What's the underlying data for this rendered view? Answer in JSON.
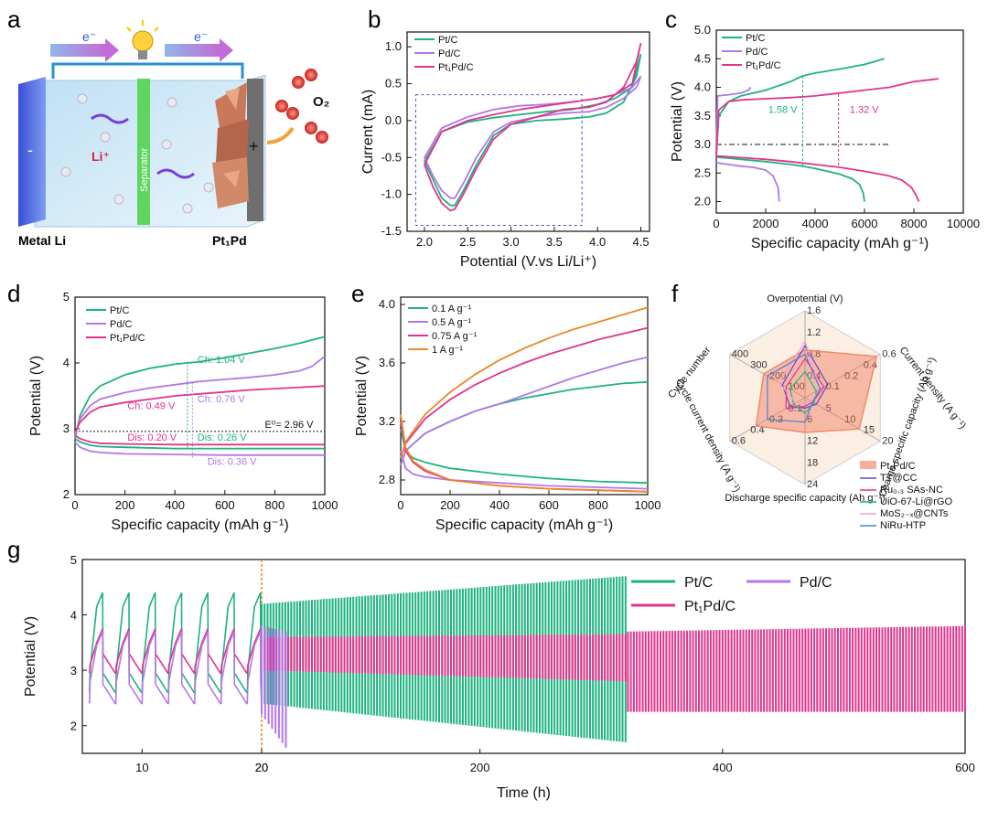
{
  "panel_letters": [
    "a",
    "b",
    "c",
    "d",
    "e",
    "f",
    "g"
  ],
  "schematic": {
    "electron_label": "e⁻",
    "electron_label_2": "e⁻",
    "li_ion": "Li⁺",
    "separator": "Separator",
    "o2": "O₂",
    "minus": "-",
    "plus": "+",
    "anode_label": "Metal Li",
    "cathode_label": "Pt₁Pd"
  },
  "colors": {
    "PtC": "#1db37f",
    "PdC": "#b377e6",
    "Pt1PdC": "#e0358e",
    "A1": "#e8892a",
    "A075": "#e0358e",
    "A05": "#b377e6",
    "A01": "#1db37f"
  },
  "chart_data": [
    {
      "panel": "b",
      "type": "line",
      "xlabel": "Potential (V.vs Li/Li⁺)",
      "ylabel": "Current (mA)",
      "xlim": [
        1.8,
        4.6
      ],
      "ylim": [
        -1.5,
        1.2
      ],
      "xticks": [
        "2.0",
        "2.5",
        "3.0",
        "3.5",
        "4.0",
        "4.5"
      ],
      "yticks": [
        "1.0",
        "0.5",
        "0.0",
        "-0.5",
        "-1.0",
        "-1.5"
      ],
      "legend": [
        "Pt/C",
        "Pd/C",
        "Pt₁Pd/C"
      ],
      "series": [
        {
          "name": "Pt/C",
          "x": [
            2.0,
            2.1,
            2.2,
            2.3,
            2.35,
            2.45,
            2.6,
            2.8,
            3.0,
            3.3,
            3.6,
            3.9,
            4.1,
            4.3,
            4.45,
            4.5,
            4.4,
            4.2,
            4.0,
            3.7,
            3.4,
            3.1,
            2.8,
            2.5,
            2.2,
            2.0
          ],
          "y": [
            -0.55,
            -0.8,
            -1.05,
            -1.15,
            -1.15,
            -0.95,
            -0.6,
            -0.2,
            -0.05,
            0.0,
            0.02,
            0.05,
            0.1,
            0.25,
            0.6,
            0.9,
            0.45,
            0.3,
            0.22,
            0.15,
            0.12,
            0.08,
            0.04,
            -0.02,
            -0.15,
            -0.55
          ]
        },
        {
          "name": "Pd/C",
          "x": [
            2.0,
            2.1,
            2.2,
            2.3,
            2.35,
            2.45,
            2.6,
            2.8,
            3.0,
            3.3,
            3.6,
            3.9,
            4.1,
            4.3,
            4.45,
            4.5,
            4.4,
            4.2,
            4.0,
            3.7,
            3.4,
            3.1,
            2.8,
            2.5,
            2.2,
            2.0
          ],
          "y": [
            -0.5,
            -0.75,
            -0.95,
            -1.05,
            -1.05,
            -0.85,
            -0.5,
            -0.15,
            -0.02,
            0.05,
            0.1,
            0.12,
            0.18,
            0.3,
            0.45,
            0.6,
            0.45,
            0.35,
            0.3,
            0.25,
            0.22,
            0.2,
            0.15,
            0.05,
            -0.1,
            -0.5
          ]
        },
        {
          "name": "Pt₁Pd/C",
          "x": [
            2.0,
            2.1,
            2.2,
            2.3,
            2.35,
            2.45,
            2.6,
            2.8,
            3.0,
            3.3,
            3.6,
            3.9,
            4.1,
            4.3,
            4.45,
            4.5,
            4.4,
            4.2,
            4.0,
            3.7,
            3.4,
            3.1,
            2.8,
            2.5,
            2.2,
            2.0
          ],
          "y": [
            -0.6,
            -0.9,
            -1.12,
            -1.22,
            -1.2,
            -1.0,
            -0.65,
            -0.25,
            -0.05,
            0.05,
            0.15,
            0.18,
            0.25,
            0.45,
            0.8,
            1.05,
            0.5,
            0.35,
            0.3,
            0.25,
            0.2,
            0.15,
            0.08,
            0.0,
            -0.15,
            -0.6
          ]
        }
      ]
    },
    {
      "panel": "c",
      "type": "line",
      "xlabel": "Specific capacity (mAh g⁻¹)",
      "ylabel": "Potential (V)",
      "xlim": [
        0,
        10000
      ],
      "ylim": [
        1.8,
        5.0
      ],
      "xticks": [
        "0",
        "2000",
        "4000",
        "6000",
        "8000",
        "10000"
      ],
      "yticks": [
        "2.0",
        "2.5",
        "3.0",
        "3.5",
        "4.0",
        "4.5",
        "5.0"
      ],
      "legend": [
        "Pt/C",
        "Pd/C",
        "Pt₁Pd/C"
      ],
      "annotations": [
        "1.58 V",
        "1.32 V"
      ],
      "reference_line": 3.0,
      "series": [
        {
          "name": "Pt/C",
          "charge_x": [
            0,
            100,
            500,
            1000,
            2000,
            3000,
            3500,
            4000,
            5000,
            6000,
            6800
          ],
          "charge_y": [
            2.8,
            3.5,
            3.75,
            3.85,
            3.95,
            4.1,
            4.2,
            4.25,
            4.32,
            4.4,
            4.5
          ],
          "discharge_x": [
            0,
            500,
            1000,
            2000,
            3000,
            3500,
            4000,
            5000,
            5500,
            5800,
            5950,
            6000
          ],
          "discharge_y": [
            2.78,
            2.76,
            2.74,
            2.7,
            2.65,
            2.62,
            2.58,
            2.48,
            2.4,
            2.3,
            2.15,
            2.0
          ]
        },
        {
          "name": "Pd/C",
          "charge_x": [
            0,
            50,
            500,
            1000,
            1300,
            1400
          ],
          "charge_y": [
            2.8,
            3.85,
            3.87,
            3.9,
            3.95,
            4.0
          ],
          "discharge_x": [
            0,
            500,
            1000,
            1500,
            2000,
            2300,
            2500,
            2550
          ],
          "discharge_y": [
            2.68,
            2.65,
            2.62,
            2.6,
            2.55,
            2.45,
            2.25,
            2.0
          ]
        },
        {
          "name": "Pt₁Pd/C",
          "charge_x": [
            0,
            100,
            500,
            1000,
            2000,
            3000,
            4000,
            5000,
            6000,
            7000,
            8000,
            9000
          ],
          "charge_y": [
            2.8,
            3.6,
            3.75,
            3.78,
            3.8,
            3.82,
            3.85,
            3.9,
            3.95,
            4.0,
            4.1,
            4.15
          ],
          "discharge_x": [
            0,
            1000,
            2000,
            3000,
            4000,
            5000,
            6000,
            7000,
            7500,
            7900,
            8100,
            8200
          ],
          "discharge_y": [
            2.8,
            2.77,
            2.74,
            2.7,
            2.65,
            2.6,
            2.53,
            2.45,
            2.38,
            2.25,
            2.1,
            2.0
          ]
        }
      ]
    },
    {
      "panel": "d",
      "type": "line",
      "xlabel": "Specific capacity (mAh g⁻¹)",
      "ylabel": "Potential (V)",
      "xlim": [
        0,
        1000
      ],
      "ylim": [
        2,
        5
      ],
      "xticks": [
        "0",
        "200",
        "400",
        "600",
        "800",
        "1000"
      ],
      "yticks": [
        "2",
        "3",
        "4",
        "5"
      ],
      "legend": [
        "Pt/C",
        "Pd/C",
        "Pt₁Pd/C"
      ],
      "reference_line": 2.96,
      "reference_label": "E⁰= 2.96 V",
      "annotations": [
        {
          "text": "Ch: 1.04 V",
          "color": "#1db37f"
        },
        {
          "text": "Ch: 0.76 V",
          "color": "#b377e6"
        },
        {
          "text": "Ch: 0.49 V",
          "color": "#e0358e"
        },
        {
          "text": "Dis: 0.20 V",
          "color": "#e0358e"
        },
        {
          "text": "Dis: 0.26 V",
          "color": "#1db37f"
        },
        {
          "text": "Dis: 0.36 V",
          "color": "#b377e6"
        }
      ],
      "series": [
        {
          "name": "Pt/C",
          "charge_x": [
            0,
            20,
            60,
            100,
            200,
            300,
            400,
            500,
            600,
            700,
            800,
            900,
            1000
          ],
          "charge_y": [
            2.85,
            3.2,
            3.5,
            3.65,
            3.82,
            3.92,
            3.98,
            4.02,
            4.08,
            4.15,
            4.22,
            4.3,
            4.4
          ],
          "discharge_x": [
            0,
            20,
            60,
            100,
            200,
            400,
            600,
            800,
            1000
          ],
          "discharge_y": [
            2.85,
            2.8,
            2.75,
            2.73,
            2.72,
            2.7,
            2.7,
            2.7,
            2.7
          ]
        },
        {
          "name": "Pd/C",
          "charge_x": [
            0,
            20,
            60,
            100,
            200,
            300,
            400,
            500,
            600,
            700,
            800,
            900,
            950,
            1000
          ],
          "charge_y": [
            2.9,
            3.15,
            3.35,
            3.45,
            3.55,
            3.62,
            3.67,
            3.72,
            3.75,
            3.78,
            3.82,
            3.88,
            3.95,
            4.1
          ],
          "discharge_x": [
            0,
            20,
            60,
            100,
            200,
            400,
            600,
            800,
            1000
          ],
          "discharge_y": [
            2.8,
            2.72,
            2.66,
            2.64,
            2.62,
            2.61,
            2.6,
            2.6,
            2.6
          ]
        },
        {
          "name": "Pt₁Pd/C",
          "charge_x": [
            0,
            20,
            60,
            100,
            200,
            300,
            400,
            500,
            600,
            700,
            800,
            900,
            1000
          ],
          "charge_y": [
            2.95,
            3.1,
            3.25,
            3.33,
            3.4,
            3.45,
            3.5,
            3.53,
            3.56,
            3.59,
            3.61,
            3.63,
            3.65
          ],
          "discharge_x": [
            0,
            20,
            60,
            100,
            200,
            400,
            600,
            800,
            1000
          ],
          "discharge_y": [
            2.9,
            2.85,
            2.8,
            2.78,
            2.77,
            2.76,
            2.76,
            2.76,
            2.76
          ]
        }
      ]
    },
    {
      "panel": "e",
      "type": "line",
      "xlabel": "Specific capacity (mAh g⁻¹)",
      "ylabel": "Potential (V)",
      "xlim": [
        0,
        1000
      ],
      "ylim": [
        2.7,
        4.05
      ],
      "xticks": [
        "0",
        "200",
        "400",
        "600",
        "800",
        "1000"
      ],
      "yticks": [
        "2.8",
        "3.2",
        "3.6",
        "4.0"
      ],
      "legend": [
        "0.1 A g⁻¹",
        "0.5 A g⁻¹",
        "0.75 A g⁻¹",
        "1 A g⁻¹"
      ],
      "series": [
        {
          "name": "0.1 A g⁻¹",
          "charge_x": [
            0,
            20,
            100,
            200,
            300,
            400,
            500,
            600,
            700,
            800,
            900,
            1000
          ],
          "charge_y": [
            2.9,
            3.0,
            3.12,
            3.2,
            3.27,
            3.32,
            3.36,
            3.39,
            3.42,
            3.44,
            3.46,
            3.47
          ],
          "discharge_x": [
            0,
            20,
            50,
            100,
            200,
            400,
            600,
            800,
            1000
          ],
          "discharge_y": [
            3.15,
            3.0,
            2.95,
            2.92,
            2.88,
            2.84,
            2.81,
            2.79,
            2.78
          ]
        },
        {
          "name": "0.5 A g⁻¹",
          "charge_x": [
            0,
            20,
            100,
            200,
            300,
            400,
            500,
            600,
            700,
            800,
            900,
            1000
          ],
          "charge_y": [
            2.9,
            3.0,
            3.12,
            3.2,
            3.27,
            3.32,
            3.38,
            3.44,
            3.5,
            3.55,
            3.6,
            3.64
          ],
          "discharge_x": [
            0,
            20,
            50,
            100,
            200,
            400,
            600,
            800,
            1000
          ],
          "discharge_y": [
            3.0,
            2.88,
            2.84,
            2.82,
            2.8,
            2.78,
            2.76,
            2.75,
            2.74
          ]
        },
        {
          "name": "0.75 A g⁻¹",
          "charge_x": [
            0,
            20,
            100,
            200,
            300,
            400,
            500,
            600,
            700,
            800,
            900,
            1000
          ],
          "charge_y": [
            2.95,
            3.05,
            3.22,
            3.35,
            3.45,
            3.53,
            3.6,
            3.66,
            3.71,
            3.76,
            3.8,
            3.84
          ],
          "discharge_x": [
            0,
            20,
            50,
            100,
            200,
            400,
            600,
            800,
            1000
          ],
          "discharge_y": [
            3.2,
            3.0,
            2.92,
            2.86,
            2.8,
            2.76,
            2.74,
            2.73,
            2.72
          ]
        },
        {
          "name": "1 A g⁻¹",
          "charge_x": [
            0,
            20,
            100,
            200,
            300,
            400,
            500,
            600,
            700,
            800,
            900,
            1000
          ],
          "charge_y": [
            2.95,
            3.06,
            3.25,
            3.4,
            3.52,
            3.62,
            3.7,
            3.77,
            3.83,
            3.88,
            3.93,
            3.98
          ],
          "discharge_x": [
            0,
            20,
            50,
            100,
            200,
            400,
            600,
            800,
            1000
          ],
          "discharge_y": [
            3.25,
            3.02,
            2.93,
            2.87,
            2.8,
            2.76,
            2.74,
            2.73,
            2.72
          ]
        }
      ]
    },
    {
      "panel": "f",
      "type": "radar",
      "axes": [
        {
          "name": "Overpotential  (V)",
          "ticks": [
            "0.4",
            "0.8",
            "1.2",
            "1.6"
          ]
        },
        {
          "name": "Current density (A g⁻¹)",
          "ticks": [
            "0.1",
            "0.2",
            "0.4",
            "0.6"
          ]
        },
        {
          "name": "Charge specific capacity (Ah g⁻¹)",
          "ticks": [
            "5",
            "10",
            "15",
            "20"
          ]
        },
        {
          "name": "Discharge specific capacity (Ah g⁻¹)",
          "ticks": [
            "6",
            "12",
            "18",
            "24"
          ]
        },
        {
          "name": "Cycle current density (A g⁻¹)",
          "ticks": [
            "0.1",
            "0.3",
            "0.4",
            "0.6"
          ]
        },
        {
          "name": "Cycle number",
          "ticks": [
            "100",
            "200",
            "300",
            "400"
          ]
        }
      ],
      "legend": [
        "Pt₁Pd/C",
        "TT@CC",
        "Ru₀.₃ SAs-NC",
        "UiO-67-Li@rGO",
        "MoS₂₋ₓ@CNTs",
        "NiRu-HTP"
      ],
      "series": [
        {
          "name": "Pt₁Pd/C",
          "values": [
            0.55,
            0.95,
            0.72,
            0.4,
            0.65,
            0.55
          ]
        },
        {
          "name": "TT@CC",
          "values": [
            0.6,
            0.3,
            0.15,
            0.12,
            0.2,
            0.3
          ]
        },
        {
          "name": "Ru₀.₃ SAs-NC",
          "values": [
            0.45,
            0.25,
            0.1,
            0.1,
            0.25,
            0.25
          ]
        },
        {
          "name": "UiO-67-Li@rGO",
          "values": [
            0.3,
            0.15,
            0.12,
            0.18,
            0.15,
            0.2
          ]
        },
        {
          "name": "MoS₂₋ₓ@CNTs",
          "values": [
            0.65,
            0.2,
            0.08,
            0.05,
            0.12,
            0.35
          ]
        },
        {
          "name": "NiRu-HTP",
          "values": [
            0.5,
            0.2,
            0.1,
            0.28,
            0.5,
            0.5
          ]
        }
      ]
    },
    {
      "panel": "g",
      "type": "line",
      "xlabel": "Time (h)",
      "ylabel": "Potential (V)",
      "ylim": [
        1.5,
        5
      ],
      "yticks": [
        "2",
        "3",
        "4",
        "5"
      ],
      "xticks_left": [
        "10",
        "20"
      ],
      "xticks_right": [
        "200",
        "400",
        "600"
      ],
      "break_at": 20,
      "legend": [
        "Pt/C",
        "Pd/C",
        "Pt₁Pd/C"
      ],
      "series": [
        {
          "name": "Pt/C",
          "segments": "cycling 0–320 h, charge ≈4.2–4.7 V, discharge ≈2.6–1.7 V"
        },
        {
          "name": "Pd/C",
          "segments": "cycling 0–25 h, charge ≈3.7 V, discharge ≈2.4–1.6 V"
        },
        {
          "name": "Pt₁Pd/C",
          "segments": "cycling 0–600 h, charge ≈3.8 V, discharge ≈2.3 V"
        }
      ]
    }
  ]
}
